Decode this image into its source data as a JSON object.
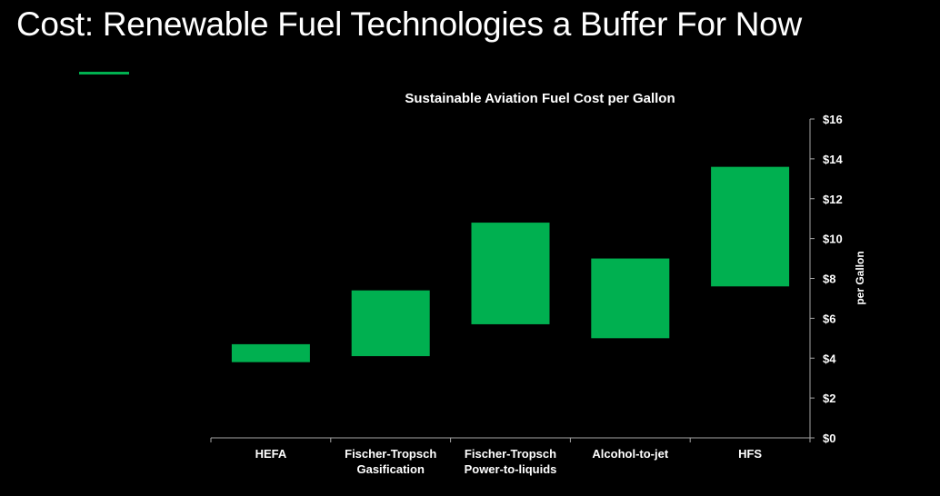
{
  "slide": {
    "title": "Cost: Renewable Fuel Technologies a Buffer For Now"
  },
  "colors": {
    "background": "#000000",
    "accent": "#00b050",
    "bar": "#00b050",
    "axis": "#a6a6a6",
    "text": "#ffffff"
  },
  "chart_data": {
    "type": "bar",
    "subtype": "floating-range",
    "title": "Sustainable Aviation Fuel Cost per Gallon",
    "xlabel": "",
    "ylabel": "per Gallon",
    "y_axis_side": "right",
    "ylim": [
      0,
      16
    ],
    "ytick_step": 2,
    "ytick_labels": [
      "$0",
      "$2",
      "$4",
      "$6",
      "$8",
      "$10",
      "$12",
      "$14",
      "$16"
    ],
    "grid": false,
    "legend": "none",
    "categories": [
      [
        "HEFA"
      ],
      [
        "Fischer-Tropsch",
        "Gasification"
      ],
      [
        "Fischer-Tropsch",
        "Power-to-liquids"
      ],
      [
        "Alcohol-to-jet"
      ],
      [
        "HFS"
      ]
    ],
    "low": [
      3.8,
      4.1,
      5.7,
      5.0,
      7.6
    ],
    "high": [
      4.7,
      7.4,
      10.8,
      9.0,
      13.6
    ]
  }
}
